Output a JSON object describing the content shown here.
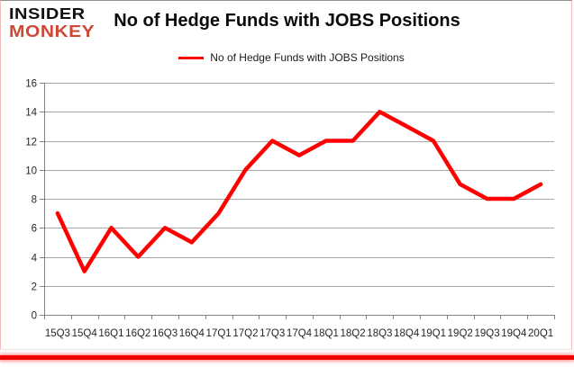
{
  "brand": {
    "line1": "INSIDER",
    "line2": "MONKEY",
    "line2_color": "#cd4936"
  },
  "header": {
    "title": "No of Hedge Funds with JOBS Positions"
  },
  "legend": {
    "label": "No of Hedge Funds with JOBS Positions",
    "swatch_color": "#ff0000"
  },
  "chart_data": {
    "type": "line",
    "title": "No of Hedge Funds with JOBS Positions",
    "categories": [
      "15Q3",
      "15Q4",
      "16Q1",
      "16Q2",
      "16Q3",
      "16Q4",
      "17Q1",
      "17Q2",
      "17Q3",
      "17Q4",
      "18Q1",
      "18Q2",
      "18Q3",
      "18Q4",
      "19Q1",
      "19Q2",
      "19Q3",
      "19Q4",
      "20Q1"
    ],
    "series": [
      {
        "name": "No of Hedge Funds with JOBS Positions",
        "color": "#ff0000",
        "values": [
          7,
          3,
          6,
          4,
          6,
          5,
          7,
          10,
          12,
          11,
          12,
          12,
          14,
          13,
          12,
          9,
          8,
          8,
          9
        ]
      }
    ],
    "xlabel": "",
    "ylabel": "",
    "ylim": [
      0,
      16
    ],
    "ytick_step": 2,
    "yticks": [
      0,
      2,
      4,
      6,
      8,
      10,
      12,
      14,
      16
    ],
    "grid": true,
    "legend_position": "top",
    "grid_color": "#a6a6a6",
    "axis_color": "#808080",
    "tick_label_color": "#262626"
  }
}
